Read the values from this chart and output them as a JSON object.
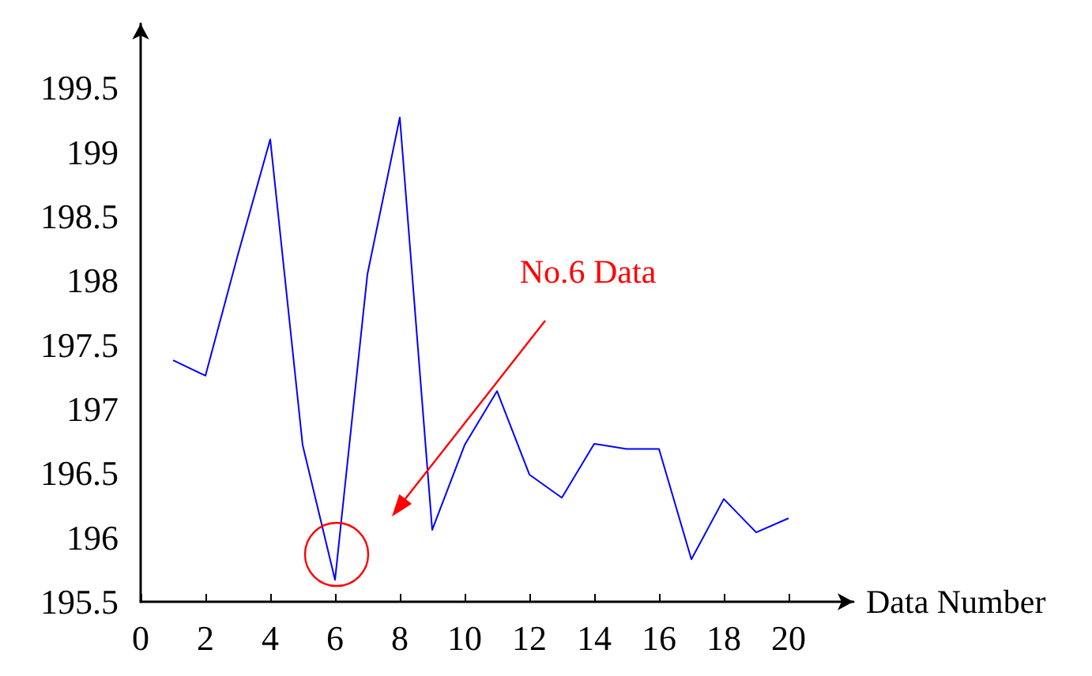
{
  "chart_data": {
    "type": "line",
    "xlabel": "Data Number",
    "x": [
      1,
      2,
      3,
      4,
      5,
      6,
      7,
      8,
      9,
      10,
      11,
      12,
      13,
      14,
      15,
      16,
      17,
      18,
      19,
      20
    ],
    "series": [
      {
        "color": "#0000ff",
        "values": [
          197.38,
          197.26,
          198.2,
          199.1,
          196.72,
          195.67,
          198.05,
          199.27,
          196.06,
          196.72,
          197.14,
          196.49,
          196.31,
          196.73,
          196.69,
          196.69,
          195.83,
          196.3,
          196.04,
          196.15
        ]
      }
    ],
    "xlim": [
      0,
      22
    ],
    "xticks": [
      0,
      2,
      4,
      6,
      8,
      10,
      12,
      14,
      16,
      18,
      20
    ],
    "ylim": [
      195.5,
      200
    ],
    "yticks": [
      195.5,
      196,
      196.5,
      197,
      197.5,
      198,
      198.5,
      199,
      199.5
    ],
    "grid": false,
    "marker": "none",
    "line_style": "solid",
    "annotations": [
      "No.6 Data"
    ]
  }
}
